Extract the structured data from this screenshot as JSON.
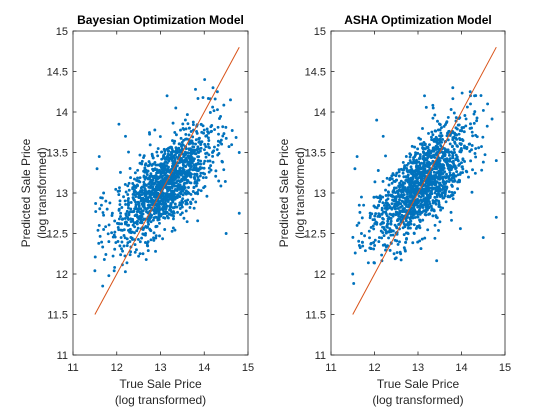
{
  "colors": {
    "points": "#0072BD",
    "fit_line": "#D95319",
    "axes": "#262626"
  },
  "chart_data": [
    {
      "type": "scatter",
      "title": "Bayesian Optimization Model",
      "xlabel": [
        "True Sale Price",
        "(log transformed)"
      ],
      "ylabel": [
        "Predicted Sale Price",
        "(log transformed)"
      ],
      "xlim": [
        11,
        15
      ],
      "ylim": [
        11,
        15
      ],
      "xticks": [
        11,
        12,
        13,
        14,
        15
      ],
      "yticks": [
        11,
        11.5,
        12,
        12.5,
        13,
        13.5,
        14,
        14.5,
        15
      ],
      "grid": false,
      "reference_line": {
        "x": [
          11.5,
          14.8
        ],
        "y": [
          11.5,
          14.8
        ]
      },
      "sample_points": [
        [
          11.5,
          12.04
        ],
        [
          11.55,
          13.3
        ],
        [
          11.6,
          12.6
        ],
        [
          11.6,
          13.45
        ],
        [
          11.65,
          12.85
        ],
        [
          11.7,
          13.0
        ],
        [
          11.75,
          12.9
        ],
        [
          11.7,
          12.55
        ],
        [
          11.9,
          12.75
        ],
        [
          12.05,
          13.85
        ],
        [
          12.1,
          12.45
        ],
        [
          12.2,
          13.7
        ],
        [
          12.3,
          12.4
        ],
        [
          12.45,
          12.3
        ],
        [
          12.5,
          12.22
        ],
        [
          12.6,
          12.25
        ],
        [
          12.7,
          12.35
        ],
        [
          13.15,
          14.2
        ],
        [
          13.35,
          14.05
        ],
        [
          13.8,
          14.28
        ],
        [
          14.2,
          14.3
        ],
        [
          14.3,
          14.25
        ],
        [
          14.5,
          12.5
        ],
        [
          14.6,
          14.15
        ],
        [
          14.8,
          13.5
        ],
        [
          14.8,
          12.75
        ]
      ]
    },
    {
      "type": "scatter",
      "title": "ASHA Optimization Model",
      "xlabel": [
        "True Sale Price",
        "(log transformed)"
      ],
      "ylabel": [
        "Predicted Sale Price",
        "(log transformed)"
      ],
      "xlim": [
        11,
        15
      ],
      "ylim": [
        11,
        15
      ],
      "xticks": [
        11,
        12,
        13,
        14,
        15
      ],
      "yticks": [
        11,
        11.5,
        12,
        12.5,
        13,
        13.5,
        14,
        14.5,
        15
      ],
      "grid": false,
      "reference_line": {
        "x": [
          11.5,
          14.8
        ],
        "y": [
          11.5,
          14.8
        ]
      },
      "sample_points": [
        [
          11.5,
          12.0
        ],
        [
          11.55,
          13.3
        ],
        [
          11.6,
          12.6
        ],
        [
          11.6,
          13.45
        ],
        [
          11.65,
          12.85
        ],
        [
          11.7,
          12.95
        ],
        [
          11.75,
          12.85
        ],
        [
          11.7,
          12.5
        ],
        [
          11.9,
          12.75
        ],
        [
          12.05,
          13.9
        ],
        [
          12.1,
          12.4
        ],
        [
          12.2,
          13.7
        ],
        [
          12.3,
          12.35
        ],
        [
          12.45,
          12.25
        ],
        [
          12.5,
          12.2
        ],
        [
          12.6,
          12.25
        ],
        [
          12.7,
          12.3
        ],
        [
          13.15,
          14.2
        ],
        [
          13.35,
          14.05
        ],
        [
          13.8,
          14.3
        ],
        [
          14.2,
          14.25
        ],
        [
          14.3,
          14.2
        ],
        [
          14.5,
          12.45
        ],
        [
          14.6,
          14.1
        ],
        [
          14.8,
          13.4
        ],
        [
          14.8,
          12.7
        ]
      ]
    }
  ]
}
